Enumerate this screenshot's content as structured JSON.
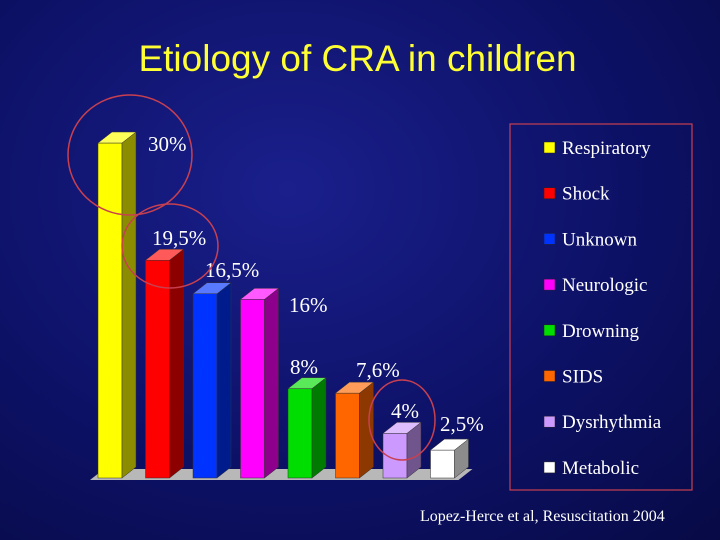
{
  "slide": {
    "title": "Etiology of CRA in children",
    "source": "Lopez-Herce et al, Resuscitation 2004"
  },
  "chart_data": {
    "type": "bar",
    "title": "Etiology of CRA in children",
    "categories": [
      "Respiratory",
      "Shock",
      "Unknown",
      "Neurologic",
      "Drowning",
      "SIDS",
      "Dysrhythmia",
      "Metabolic"
    ],
    "values": [
      30,
      19.5,
      16.5,
      16,
      8,
      7.6,
      4,
      2.5
    ],
    "value_labels": [
      "30%",
      "19,5%",
      "16,5%",
      "16%",
      "8%",
      "7,6%",
      "4%",
      "2,5%"
    ],
    "unit": "%",
    "ylim": [
      0,
      30
    ],
    "colors": [
      "#ffff00",
      "#ff0000",
      "#0033ff",
      "#ff00ff",
      "#00dd00",
      "#ff6600",
      "#cc99ff",
      "#ffffff"
    ],
    "legend_position": "right",
    "grid": false,
    "chart_style": "3d-bar",
    "highlighted_categories": [
      "Respiratory",
      "Shock",
      "Dysrhythmia"
    ],
    "highlight_color": "#c84050"
  }
}
